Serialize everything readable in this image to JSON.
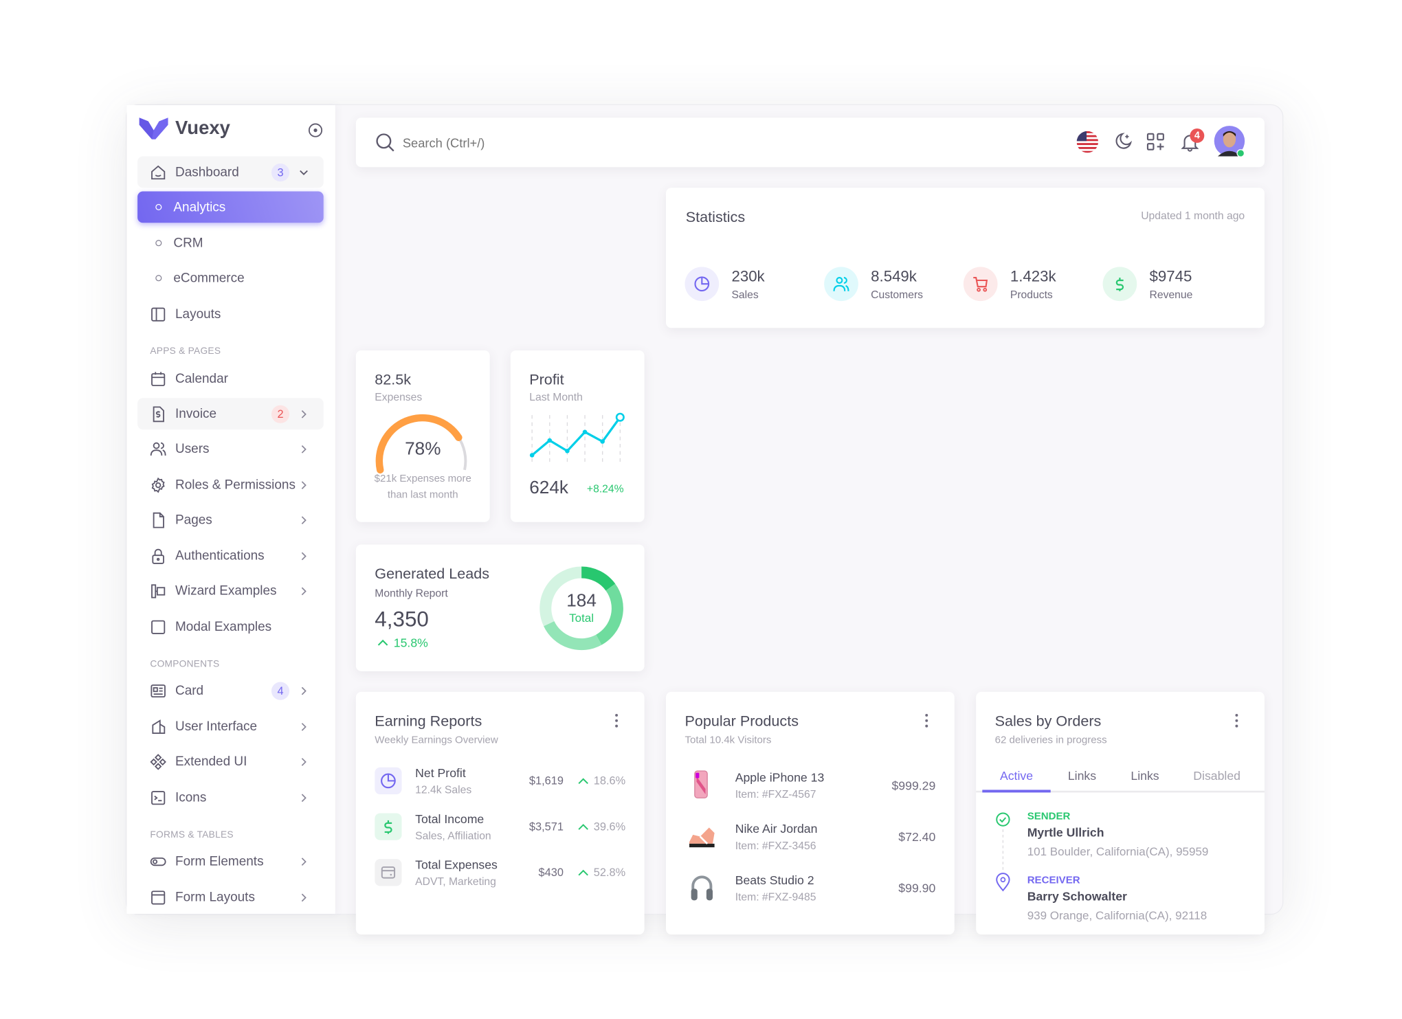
{
  "app": {
    "name": "Vuexy"
  },
  "sidebar": {
    "items": [
      {
        "label": "Dashboard",
        "badge": "3"
      },
      {
        "label": "Analytics"
      },
      {
        "label": "CRM"
      },
      {
        "label": "eCommerce"
      },
      {
        "label": "Layouts"
      },
      {
        "label": "Calendar"
      },
      {
        "label": "Invoice",
        "badge": "2"
      },
      {
        "label": "Users"
      },
      {
        "label": "Roles & Permissions"
      },
      {
        "label": "Pages"
      },
      {
        "label": "Authentications"
      },
      {
        "label": "Wizard Examples"
      },
      {
        "label": "Modal Examples"
      },
      {
        "label": "Card",
        "badge": "4"
      },
      {
        "label": "User Interface"
      },
      {
        "label": "Extended UI"
      },
      {
        "label": "Icons"
      },
      {
        "label": "Form Elements"
      },
      {
        "label": "Form Layouts"
      }
    ],
    "sections": [
      "APPS & PAGES",
      "COMPONENTS",
      "FORMS & TABLES"
    ]
  },
  "topbar": {
    "search_placeholder": "Search (Ctrl+/)",
    "notification_count": "4",
    "icons": [
      "us-flag-icon",
      "moon-icon",
      "grid-plus-icon",
      "bell-icon",
      "avatar"
    ]
  },
  "statistics": {
    "title": "Statistics",
    "updated": "Updated 1 month ago",
    "items": [
      {
        "value": "230k",
        "label": "Sales",
        "icon": "pie-chart-icon",
        "color": "#7367f0"
      },
      {
        "value": "8.549k",
        "label": "Customers",
        "icon": "users-icon",
        "color": "#00cfe8"
      },
      {
        "value": "1.423k",
        "label": "Products",
        "icon": "cart-icon",
        "color": "#ea5455"
      },
      {
        "value": "$9745",
        "label": "Revenue",
        "icon": "dollar-icon",
        "color": "#28c76f"
      }
    ]
  },
  "expenses": {
    "value": "82.5k",
    "label": "Expenses",
    "percent": "78%",
    "gauge_fraction": 0.78,
    "note_line1": "$21k Expenses more",
    "note_line2": "than last month"
  },
  "profit": {
    "title": "Profit",
    "subtitle": "Last Month",
    "value": "624k",
    "change": "+8.24%",
    "sparkline": [
      8,
      22,
      12,
      30,
      21,
      44
    ]
  },
  "leads": {
    "title": "Generated Leads",
    "subtitle": "Monthly Report",
    "value": "4,350",
    "change": "15.8%",
    "donut_total": "184",
    "donut_label": "Total",
    "donut_shares": [
      15,
      27,
      26,
      32
    ]
  },
  "earning": {
    "title": "Earning Reports",
    "subtitle": "Weekly Earnings Overview",
    "rows": [
      {
        "title": "Net Profit",
        "sub": "12.4k Sales",
        "amount": "$1,619",
        "change": "18.6%",
        "icon": "pie-chart-icon"
      },
      {
        "title": "Total Income",
        "sub": "Sales, Affiliation",
        "amount": "$3,571",
        "change": "39.6%",
        "icon": "dollar-icon"
      },
      {
        "title": "Total Expenses",
        "sub": "ADVT, Marketing",
        "amount": "$430",
        "change": "52.8%",
        "icon": "credit-card-icon"
      }
    ]
  },
  "products": {
    "title": "Popular Products",
    "subtitle": "Total 10.4k Visitors",
    "rows": [
      {
        "name": "Apple iPhone 13",
        "item": "Item: #FXZ-4567",
        "price": "$999.29"
      },
      {
        "name": "Nike Air Jordan",
        "item": "Item: #FXZ-3456",
        "price": "$72.40"
      },
      {
        "name": "Beats Studio 2",
        "item": "Item: #FXZ-9485",
        "price": "$99.90"
      }
    ]
  },
  "orders": {
    "title": "Sales by Orders",
    "subtitle": "62 deliveries in progress",
    "tabs": [
      "Active",
      "Links",
      "Links",
      "Disabled"
    ],
    "sender": {
      "label": "SENDER",
      "name": "Myrtle Ullrich",
      "address": "101 Boulder, California(CA), 95959"
    },
    "receiver": {
      "label": "RECEIVER",
      "name": "Barry Schowalter",
      "address": "939 Orange, California(CA), 92118"
    }
  },
  "colors": {
    "primary": "#7367f0",
    "success": "#28c76f",
    "info": "#00cfe8",
    "danger": "#ea5455",
    "warning": "#ff9f43"
  }
}
